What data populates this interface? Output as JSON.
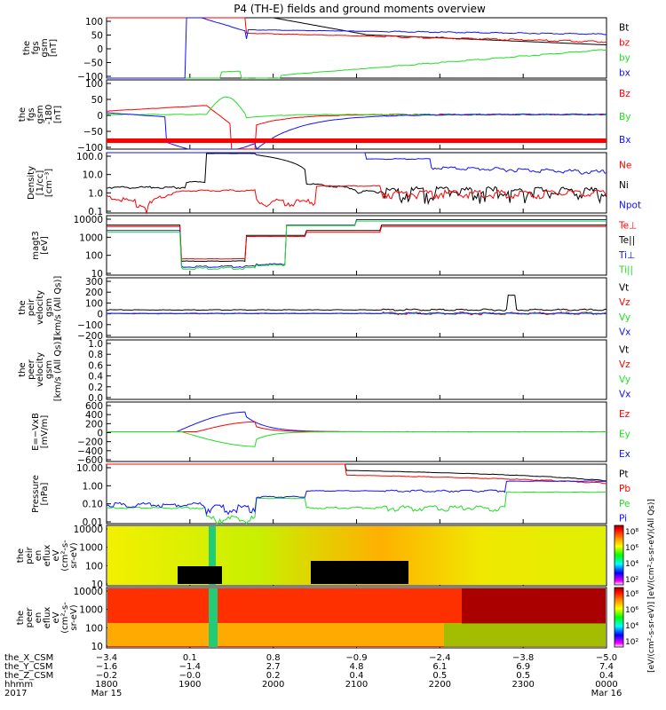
{
  "title": "P4 (TH-E) fields and ground moments overview",
  "colors": {
    "black": "#000000",
    "red": "#ff0000",
    "green": "#22dd22",
    "blue": "#1010ff",
    "cbar": [
      "#ffffff",
      "#ff00ff",
      "#0000ff",
      "#00ffff",
      "#00ff00",
      "#ffff00",
      "#ff8000",
      "#ff0000",
      "#990000"
    ]
  },
  "chart_data": [
    {
      "id": "fgs",
      "type": "line",
      "ylabel": [
        "the",
        "fgs",
        "gsm",
        "[nT]"
      ],
      "yticks": [
        "100",
        "50",
        "0",
        "−50",
        "−100"
      ],
      "ylim": [
        -100,
        100
      ],
      "legend": [
        {
          "name": "Bt",
          "color": "black"
        },
        {
          "name": "bz",
          "color": "red"
        },
        {
          "name": "by",
          "color": "green"
        },
        {
          "name": "bx",
          "color": "blue"
        }
      ]
    },
    {
      "id": "fgs2",
      "type": "line",
      "ylabel": [
        "the",
        "fgs",
        "gsm",
        "-180",
        "[nT]"
      ],
      "yticks": [
        "100",
        "50",
        "0",
        "−50",
        "−100"
      ],
      "ylim": [
        -100,
        100
      ],
      "legend": [
        {
          "name": "Bz",
          "color": "red"
        },
        {
          "name": "By",
          "color": "green"
        },
        {
          "name": "Bx",
          "color": "blue"
        }
      ]
    },
    {
      "id": "density",
      "type": "line",
      "scale": "log",
      "ylabel": [
        "Density",
        "[1/cc]",
        "[cm⁻³]"
      ],
      "yticks": [
        "100.0",
        "10.0",
        "1.0",
        "0.1"
      ],
      "ylim": [
        0.1,
        200
      ],
      "legend": [
        {
          "name": "Ne",
          "color": "red"
        },
        {
          "name": "Ni",
          "color": "black"
        },
        {
          "name": "Npot",
          "color": "blue"
        }
      ]
    },
    {
      "id": "temp",
      "type": "line",
      "scale": "log",
      "ylabel": [
        "magt3",
        "[eV]"
      ],
      "yticks": [
        "10000",
        "1000",
        "100",
        "10"
      ],
      "ylim": [
        5,
        10000
      ],
      "legend": [
        {
          "name": "Te⊥",
          "color": "red"
        },
        {
          "name": "Te||",
          "color": "black"
        },
        {
          "name": "Ti⊥",
          "color": "blue"
        },
        {
          "name": "Ti||",
          "color": "green"
        }
      ]
    },
    {
      "id": "pivel",
      "type": "line",
      "ylabel": [
        "the",
        "peir",
        "velocity",
        "gsm",
        "[km/s (All Qs)]"
      ],
      "yticks": [
        "300",
        "200",
        "100",
        "0",
        "−100",
        "−200"
      ],
      "ylim": [
        -200,
        300
      ],
      "legend": [
        {
          "name": "Vt",
          "color": "black"
        },
        {
          "name": "Vz",
          "color": "red"
        },
        {
          "name": "Vy",
          "color": "green"
        },
        {
          "name": "Vx",
          "color": "blue"
        }
      ]
    },
    {
      "id": "pevel",
      "type": "line",
      "ylabel": [
        "the",
        "peer",
        "velocity",
        "gsm",
        "[km/s (All Qs)]"
      ],
      "yticks": [
        "1.0",
        "0.8",
        "0.6",
        "0.4",
        "0.2",
        "0.0"
      ],
      "ylim": [
        0,
        1
      ],
      "legend": [
        {
          "name": "Vt",
          "color": "black"
        },
        {
          "name": "Vz",
          "color": "red"
        },
        {
          "name": "Vy",
          "color": "green"
        },
        {
          "name": "Vx",
          "color": "blue"
        }
      ]
    },
    {
      "id": "efield",
      "type": "line",
      "ylabel": [
        "E=−VxB",
        "[mV/m]"
      ],
      "yticks": [
        "600",
        "400",
        "200",
        "0",
        "−200",
        "−400",
        "−600"
      ],
      "ylim": [
        -600,
        600
      ],
      "legend": [
        {
          "name": "Ez",
          "color": "red"
        },
        {
          "name": "Ey",
          "color": "green"
        },
        {
          "name": "Ex",
          "color": "blue"
        }
      ]
    },
    {
      "id": "pressure",
      "type": "line",
      "scale": "log",
      "ylabel": [
        "Pressure",
        "[nPa]"
      ],
      "yticks": [
        "10.00",
        "1.00",
        "0.10",
        "0.01"
      ],
      "ylim": [
        0.005,
        30
      ],
      "legend": [
        {
          "name": "Pt",
          "color": "black"
        },
        {
          "name": "Pb",
          "color": "red"
        },
        {
          "name": "Pe",
          "color": "green"
        },
        {
          "name": "Pi",
          "color": "blue"
        }
      ]
    },
    {
      "id": "peir_spec",
      "type": "heatmap",
      "ylabel": [
        "the",
        "peir",
        "en",
        "eflux",
        "eV",
        "(cm²-s-",
        "sr-eV)"
      ],
      "yticks": [
        "10000",
        "1000",
        "100",
        "10"
      ]
    },
    {
      "id": "peer_spec",
      "type": "heatmap",
      "ylabel": [
        "the",
        "peer",
        "en",
        "eflux",
        "eV",
        "(cm²-s-",
        "sr-eV)"
      ],
      "yticks": [
        "10000",
        "1000",
        "100",
        "10"
      ]
    }
  ],
  "colorbar": {
    "ticks": [
      "10⁸",
      "10⁶",
      "10⁴",
      "10²"
    ],
    "label": "[eV/(cm²-s-sr-eV)] [eV/(cm²-s-sr-eV)(All Qs)]"
  },
  "xaxis": {
    "rows": [
      {
        "label": "the_X_CSM",
        "values": [
          "−3.4",
          "0.1",
          "0.8",
          "−0.9",
          "−2.4",
          "−3.8",
          "−5.0"
        ]
      },
      {
        "label": "the_Y_CSM",
        "values": [
          "−1.6",
          "−1.4",
          "2.7",
          "4.8",
          "6.1",
          "6.9",
          "7.4"
        ]
      },
      {
        "label": "the_Z_CSM",
        "values": [
          "−0.2",
          "−0.0",
          "0.2",
          "0.4",
          "0.5",
          "0.5",
          "0.4"
        ]
      },
      {
        "label": "hhmm",
        "values": [
          "1800",
          "1900",
          "2000",
          "2100",
          "2200",
          "2300",
          "0000"
        ]
      },
      {
        "label": "2017",
        "values": [
          "Mar 15",
          "",
          "",
          "",
          "",
          "",
          "Mar 16"
        ]
      }
    ]
  }
}
